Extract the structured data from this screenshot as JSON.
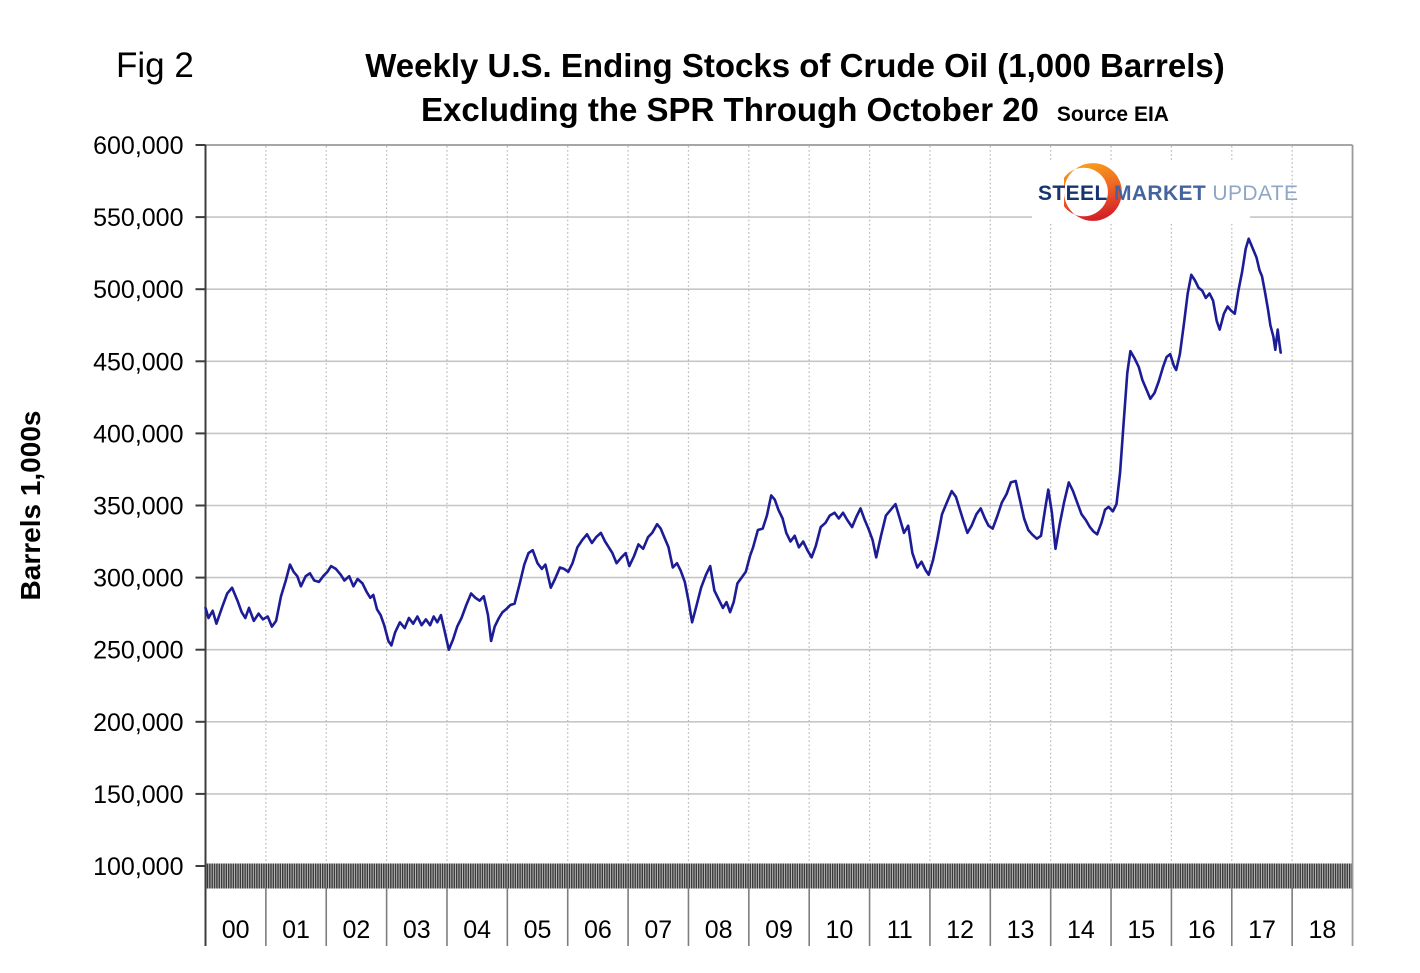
{
  "figure": {
    "fig_label": "Fig 2",
    "title_line1": "Weekly U.S. Ending Stocks of Crude Oil (1,000 Barrels)",
    "title_line2": "Excluding the SPR Through October 20",
    "source": "Source EIA"
  },
  "logo": {
    "word1": "STEEL",
    "word2": "MARKET",
    "word3": "UPDATE",
    "navy": "#16356e",
    "mid_blue": "#44639f",
    "light_blue": "#8fa6c4",
    "crescent_orange_top": "#f9a51a",
    "crescent_orange_mid": "#ef6823",
    "crescent_red_bottom": "#d42027"
  },
  "chart_data": {
    "type": "line",
    "title": "Weekly U.S. Ending Stocks of Crude Oil (1,000 Barrels) Excluding the SPR Through October 20",
    "source": "EIA",
    "xlabel": "",
    "ylabel": "Barrels 1,000s",
    "unit": "1,000 barrels",
    "ylim": [
      100000,
      600000
    ],
    "x_range_years": [
      2000,
      2019
    ],
    "grid": "horizontal solid gray lines every 50,000; vertical dashed lines at year boundaries; dense weekly minor-tick band along bottom axis",
    "legend": "none",
    "line_color": "#1c1c96",
    "y_ticks": [
      {
        "value": 600000,
        "label": "600,000"
      },
      {
        "value": 550000,
        "label": "550,000"
      },
      {
        "value": 500000,
        "label": "500,000"
      },
      {
        "value": 450000,
        "label": "450,000"
      },
      {
        "value": 400000,
        "label": "400,000"
      },
      {
        "value": 350000,
        "label": "350,000"
      },
      {
        "value": 300000,
        "label": "300,000"
      },
      {
        "value": 250000,
        "label": "250,000"
      },
      {
        "value": 200000,
        "label": "200,000"
      },
      {
        "value": 150000,
        "label": "150,000"
      },
      {
        "value": 100000,
        "label": "100,000"
      }
    ],
    "x_ticks": [
      "00",
      "01",
      "02",
      "03",
      "04",
      "05",
      "06",
      "07",
      "08",
      "09",
      "10",
      "11",
      "12",
      "13",
      "14",
      "15",
      "16",
      "17",
      "18"
    ],
    "series": [
      {
        "name": "Weekly U.S. ending stocks of crude oil excluding SPR",
        "points": [
          [
            2000.0,
            279000
          ],
          [
            2000.05,
            272000
          ],
          [
            2000.12,
            277000
          ],
          [
            2000.18,
            268000
          ],
          [
            2000.28,
            280000
          ],
          [
            2000.36,
            289000
          ],
          [
            2000.44,
            293000
          ],
          [
            2000.53,
            284000
          ],
          [
            2000.6,
            276000
          ],
          [
            2000.66,
            272000
          ],
          [
            2000.72,
            279000
          ],
          [
            2000.8,
            270000
          ],
          [
            2000.88,
            275000
          ],
          [
            2000.95,
            271000
          ],
          [
            2001.03,
            273000
          ],
          [
            2001.1,
            266000
          ],
          [
            2001.17,
            270000
          ],
          [
            2001.25,
            287000
          ],
          [
            2001.33,
            298000
          ],
          [
            2001.4,
            309000
          ],
          [
            2001.46,
            304000
          ],
          [
            2001.52,
            301000
          ],
          [
            2001.58,
            294000
          ],
          [
            2001.66,
            301000
          ],
          [
            2001.73,
            303000
          ],
          [
            2001.8,
            298000
          ],
          [
            2001.88,
            297000
          ],
          [
            2001.95,
            301000
          ],
          [
            2002.02,
            304000
          ],
          [
            2002.08,
            308000
          ],
          [
            2002.16,
            306000
          ],
          [
            2002.24,
            302000
          ],
          [
            2002.3,
            298000
          ],
          [
            2002.38,
            301000
          ],
          [
            2002.45,
            294000
          ],
          [
            2002.52,
            299000
          ],
          [
            2002.6,
            296000
          ],
          [
            2002.67,
            290000
          ],
          [
            2002.73,
            286000
          ],
          [
            2002.78,
            288000
          ],
          [
            2002.84,
            278000
          ],
          [
            2002.9,
            274000
          ],
          [
            2002.96,
            267000
          ],
          [
            2003.03,
            256000
          ],
          [
            2003.08,
            253000
          ],
          [
            2003.14,
            262000
          ],
          [
            2003.22,
            269000
          ],
          [
            2003.3,
            265000
          ],
          [
            2003.37,
            272000
          ],
          [
            2003.44,
            268000
          ],
          [
            2003.51,
            273000
          ],
          [
            2003.58,
            267000
          ],
          [
            2003.65,
            271000
          ],
          [
            2003.72,
            267000
          ],
          [
            2003.78,
            273000
          ],
          [
            2003.84,
            269000
          ],
          [
            2003.9,
            274000
          ],
          [
            2003.96,
            263000
          ],
          [
            2004.03,
            250000
          ],
          [
            2004.1,
            257000
          ],
          [
            2004.17,
            266000
          ],
          [
            2004.24,
            272000
          ],
          [
            2004.32,
            281000
          ],
          [
            2004.4,
            289000
          ],
          [
            2004.47,
            286000
          ],
          [
            2004.54,
            284000
          ],
          [
            2004.61,
            287000
          ],
          [
            2004.68,
            274000
          ],
          [
            2004.73,
            256000
          ],
          [
            2004.79,
            266000
          ],
          [
            2004.86,
            272000
          ],
          [
            2004.92,
            276000
          ],
          [
            2004.98,
            278000
          ],
          [
            2005.05,
            281000
          ],
          [
            2005.12,
            282000
          ],
          [
            2005.2,
            295000
          ],
          [
            2005.28,
            309000
          ],
          [
            2005.35,
            317000
          ],
          [
            2005.42,
            319000
          ],
          [
            2005.5,
            310000
          ],
          [
            2005.57,
            306000
          ],
          [
            2005.63,
            309000
          ],
          [
            2005.72,
            293000
          ],
          [
            2005.79,
            299000
          ],
          [
            2005.87,
            307000
          ],
          [
            2005.94,
            306000
          ],
          [
            2006.01,
            304000
          ],
          [
            2006.08,
            310000
          ],
          [
            2006.16,
            321000
          ],
          [
            2006.24,
            326000
          ],
          [
            2006.32,
            330000
          ],
          [
            2006.4,
            324000
          ],
          [
            2006.47,
            328000
          ],
          [
            2006.55,
            331000
          ],
          [
            2006.62,
            325000
          ],
          [
            2006.68,
            321000
          ],
          [
            2006.74,
            317000
          ],
          [
            2006.81,
            310000
          ],
          [
            2006.89,
            314000
          ],
          [
            2006.96,
            317000
          ],
          [
            2007.02,
            308000
          ],
          [
            2007.1,
            315000
          ],
          [
            2007.17,
            323000
          ],
          [
            2007.25,
            320000
          ],
          [
            2007.33,
            328000
          ],
          [
            2007.4,
            331000
          ],
          [
            2007.48,
            337000
          ],
          [
            2007.54,
            334000
          ],
          [
            2007.6,
            328000
          ],
          [
            2007.67,
            321000
          ],
          [
            2007.74,
            307000
          ],
          [
            2007.81,
            310000
          ],
          [
            2007.87,
            305000
          ],
          [
            2007.94,
            297000
          ],
          [
            2008.0,
            284000
          ],
          [
            2008.06,
            269000
          ],
          [
            2008.13,
            280000
          ],
          [
            2008.21,
            293000
          ],
          [
            2008.29,
            302000
          ],
          [
            2008.36,
            308000
          ],
          [
            2008.43,
            291000
          ],
          [
            2008.5,
            285000
          ],
          [
            2008.57,
            279000
          ],
          [
            2008.63,
            283000
          ],
          [
            2008.69,
            276000
          ],
          [
            2008.75,
            283000
          ],
          [
            2008.81,
            296000
          ],
          [
            2008.88,
            300000
          ],
          [
            2008.95,
            304000
          ],
          [
            2009.02,
            315000
          ],
          [
            2009.07,
            321000
          ],
          [
            2009.15,
            333000
          ],
          [
            2009.23,
            334000
          ],
          [
            2009.3,
            343000
          ],
          [
            2009.37,
            357000
          ],
          [
            2009.43,
            354000
          ],
          [
            2009.49,
            347000
          ],
          [
            2009.56,
            341000
          ],
          [
            2009.62,
            331000
          ],
          [
            2009.69,
            325000
          ],
          [
            2009.76,
            329000
          ],
          [
            2009.83,
            321000
          ],
          [
            2009.9,
            325000
          ],
          [
            2009.97,
            319000
          ],
          [
            2010.04,
            314000
          ],
          [
            2010.11,
            322000
          ],
          [
            2010.19,
            335000
          ],
          [
            2010.27,
            338000
          ],
          [
            2010.34,
            343000
          ],
          [
            2010.42,
            345000
          ],
          [
            2010.49,
            341000
          ],
          [
            2010.56,
            345000
          ],
          [
            2010.63,
            340000
          ],
          [
            2010.71,
            335000
          ],
          [
            2010.78,
            342000
          ],
          [
            2010.85,
            348000
          ],
          [
            2010.92,
            340000
          ],
          [
            2010.98,
            334000
          ],
          [
            2011.05,
            326000
          ],
          [
            2011.11,
            314000
          ],
          [
            2011.19,
            329000
          ],
          [
            2011.27,
            343000
          ],
          [
            2011.35,
            347000
          ],
          [
            2011.43,
            351000
          ],
          [
            2011.5,
            341000
          ],
          [
            2011.57,
            331000
          ],
          [
            2011.64,
            336000
          ],
          [
            2011.71,
            317000
          ],
          [
            2011.79,
            307000
          ],
          [
            2011.86,
            311000
          ],
          [
            2011.93,
            305000
          ],
          [
            2011.98,
            302000
          ],
          [
            2012.05,
            312000
          ],
          [
            2012.12,
            326000
          ],
          [
            2012.2,
            344000
          ],
          [
            2012.28,
            352000
          ],
          [
            2012.36,
            360000
          ],
          [
            2012.43,
            356000
          ],
          [
            2012.49,
            348000
          ],
          [
            2012.55,
            340000
          ],
          [
            2012.62,
            331000
          ],
          [
            2012.69,
            336000
          ],
          [
            2012.77,
            344000
          ],
          [
            2012.84,
            348000
          ],
          [
            2012.91,
            341000
          ],
          [
            2012.97,
            336000
          ],
          [
            2013.04,
            334000
          ],
          [
            2013.11,
            342000
          ],
          [
            2013.19,
            352000
          ],
          [
            2013.27,
            358000
          ],
          [
            2013.34,
            366000
          ],
          [
            2013.42,
            367000
          ],
          [
            2013.49,
            354000
          ],
          [
            2013.56,
            341000
          ],
          [
            2013.63,
            333000
          ],
          [
            2013.69,
            330000
          ],
          [
            2013.77,
            327000
          ],
          [
            2013.84,
            329000
          ],
          [
            2013.91,
            348000
          ],
          [
            2013.96,
            361000
          ],
          [
            2014.02,
            345000
          ],
          [
            2014.08,
            320000
          ],
          [
            2014.15,
            337000
          ],
          [
            2014.22,
            352000
          ],
          [
            2014.3,
            366000
          ],
          [
            2014.37,
            360000
          ],
          [
            2014.44,
            352000
          ],
          [
            2014.51,
            344000
          ],
          [
            2014.58,
            340000
          ],
          [
            2014.65,
            335000
          ],
          [
            2014.71,
            332000
          ],
          [
            2014.77,
            330000
          ],
          [
            2014.84,
            338000
          ],
          [
            2014.9,
            347000
          ],
          [
            2014.96,
            349000
          ],
          [
            2015.03,
            346000
          ],
          [
            2015.09,
            351000
          ],
          [
            2015.15,
            373000
          ],
          [
            2015.21,
            408000
          ],
          [
            2015.27,
            442000
          ],
          [
            2015.32,
            457000
          ],
          [
            2015.39,
            452000
          ],
          [
            2015.46,
            446000
          ],
          [
            2015.52,
            437000
          ],
          [
            2015.59,
            430000
          ],
          [
            2015.65,
            424000
          ],
          [
            2015.72,
            428000
          ],
          [
            2015.79,
            436000
          ],
          [
            2015.86,
            446000
          ],
          [
            2015.92,
            453000
          ],
          [
            2015.98,
            455000
          ],
          [
            2016.04,
            447000
          ],
          [
            2016.08,
            444000
          ],
          [
            2016.14,
            455000
          ],
          [
            2016.21,
            477000
          ],
          [
            2016.27,
            497000
          ],
          [
            2016.33,
            510000
          ],
          [
            2016.39,
            506000
          ],
          [
            2016.45,
            501000
          ],
          [
            2016.51,
            499000
          ],
          [
            2016.57,
            494000
          ],
          [
            2016.63,
            497000
          ],
          [
            2016.69,
            492000
          ],
          [
            2016.75,
            478000
          ],
          [
            2016.8,
            472000
          ],
          [
            2016.87,
            483000
          ],
          [
            2016.93,
            488000
          ],
          [
            2016.99,
            485000
          ],
          [
            2017.05,
            483000
          ],
          [
            2017.11,
            499000
          ],
          [
            2017.17,
            512000
          ],
          [
            2017.23,
            528000
          ],
          [
            2017.28,
            535000
          ],
          [
            2017.34,
            529000
          ],
          [
            2017.41,
            522000
          ],
          [
            2017.46,
            513000
          ],
          [
            2017.5,
            509000
          ],
          [
            2017.55,
            498000
          ],
          [
            2017.6,
            486000
          ],
          [
            2017.64,
            475000
          ],
          [
            2017.69,
            467000
          ],
          [
            2017.72,
            458000
          ],
          [
            2017.76,
            472000
          ],
          [
            2017.79,
            462000
          ],
          [
            2017.81,
            456000
          ]
        ]
      }
    ]
  }
}
